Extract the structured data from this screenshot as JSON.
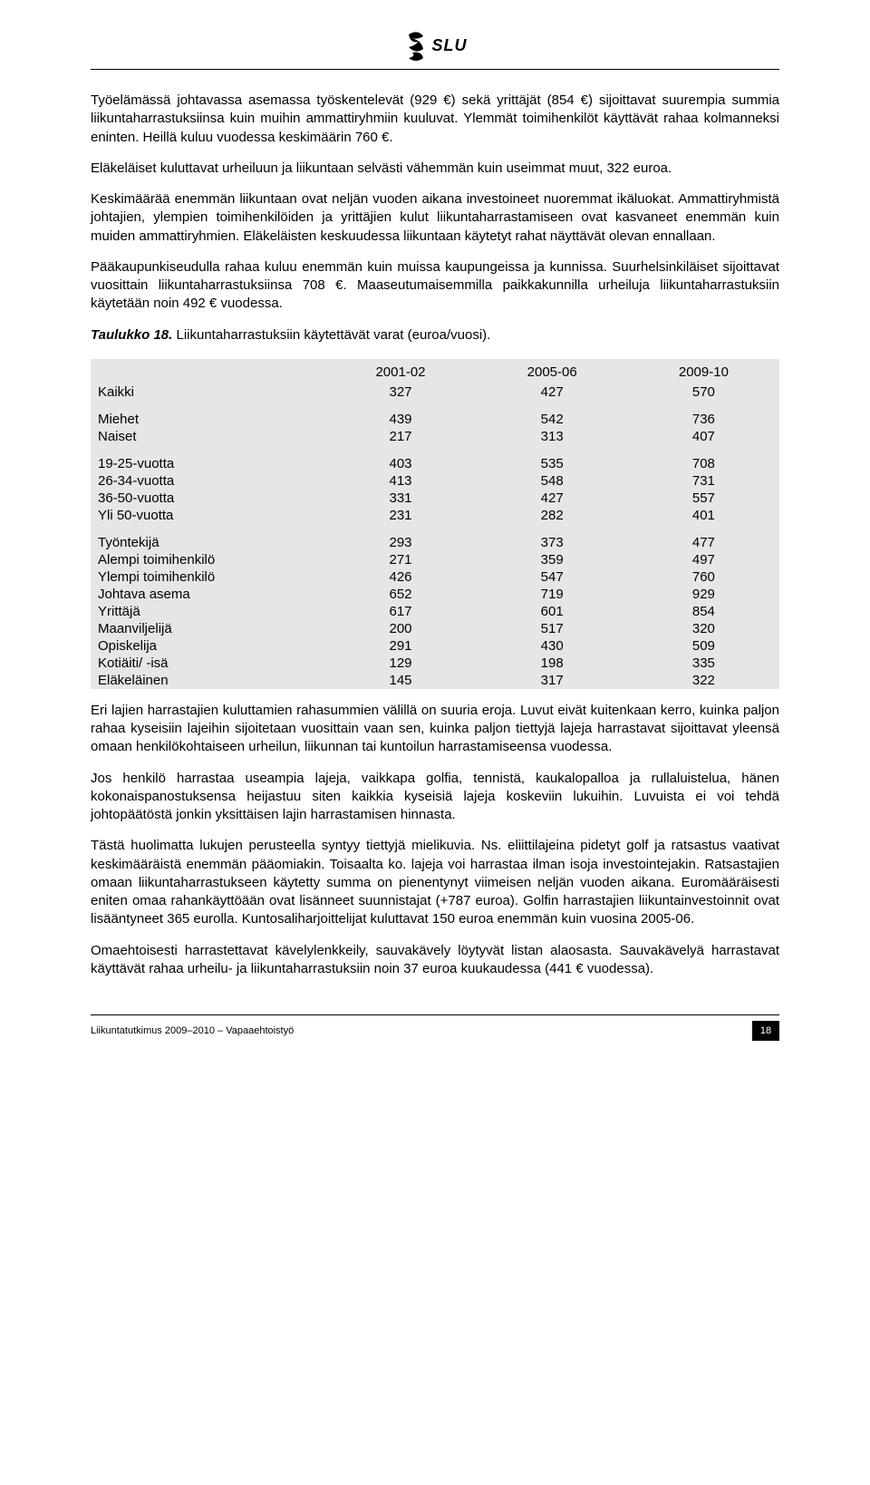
{
  "header": {
    "brand": "SLU"
  },
  "paragraphs": {
    "p1": "Työelämässä johtavassa asemassa työskentelevät (929 €) sekä yrittäjät (854 €) sijoittavat suurempia summia liikuntaharrastuksiinsa kuin muihin ammattiryhmiin kuuluvat. Ylemmät toimihenkilöt käyttävät rahaa kolmanneksi eninten. Heillä kuluu vuodessa keskimäärin 760 €.",
    "p2": "Eläkeläiset kuluttavat urheiluun ja liikuntaan selvästi vähemmän kuin useimmat muut, 322 euroa.",
    "p3": "Keskimäärää enemmän liikuntaan ovat neljän vuoden aikana investoineet nuoremmat ikäluokat. Ammattiryhmistä johtajien, ylempien toimihenkilöiden ja yrittäjien kulut liikuntaharrastamiseen ovat kasvaneet enemmän kuin muiden ammattiryhmien. Eläkeläisten keskuudessa liikuntaan käytetyt rahat näyttävät olevan ennallaan.",
    "p4": "Pääkaupunkiseudulla rahaa kuluu enemmän kuin muissa kaupungeissa ja kunnissa. Suurhelsinkiläiset sijoittavat vuosittain liikuntaharrastuksiinsa 708 €. Maaseutumaisemmilla paikkakunnilla urheiluja liikuntaharrastuksiin käytetään noin 492 € vuodessa.",
    "p5": "Eri lajien harrastajien kuluttamien rahasummien välillä on suuria eroja. Luvut eivät kuitenkaan kerro, kuinka paljon rahaa kyseisiin lajeihin sijoitetaan vuosittain vaan sen, kuinka paljon tiettyjä lajeja harrastavat sijoittavat yleensä omaan henkilökohtaiseen urheilun, liikunnan tai kuntoilun harrastamiseensa vuodessa.",
    "p6": "Jos henkilö harrastaa useampia lajeja, vaikkapa golfia, tennistä, kaukalopalloa ja rullaluistelua, hänen kokonaispanostuksensa heijastuu siten kaikkia kyseisiä lajeja koskeviin lukuihin. Luvuista ei voi tehdä johtopäätöstä jonkin yksittäisen lajin harrastamisen hinnasta.",
    "p7": "Tästä huolimatta lukujen perusteella syntyy tiettyjä mielikuvia. Ns. eliittilajeina pidetyt golf ja ratsastus vaativat keskimääräistä enemmän pääomiakin. Toisaalta ko. lajeja voi harrastaa ilman isoja investointejakin. Ratsastajien omaan liikuntaharrastukseen käytetty summa on pienentynyt viimeisen neljän vuoden aikana. Euromääräisesti eniten omaa rahankäyttöään ovat lisänneet suunnistajat (+787 euroa). Golfin harrastajien liikuntainvestoinnit ovat lisääntyneet 365 eurolla. Kuntosaliharjoittelijat kuluttavat 150 euroa enemmän kuin vuosina 2005-06.",
    "p8": "Omaehtoisesti harrastettavat kävelylenkkeily, sauvakävely löytyvät listan alaosasta. Sauvakävelyä harrastavat käyttävät rahaa urheilu- ja liikuntaharrastuksiin noin 37 euroa kuukaudessa (441 € vuodessa)."
  },
  "table": {
    "title_bold": "Taulukko 18.",
    "title_rest": " Liikuntaharrastuksiin käytettävät varat (euroa/vuosi).",
    "headers": [
      "",
      "2001-02",
      "2005-06",
      "2009-10"
    ],
    "groups": [
      {
        "rows": [
          {
            "label": "Kaikki",
            "v": [
              "327",
              "427",
              "570"
            ]
          }
        ]
      },
      {
        "rows": [
          {
            "label": "Miehet",
            "v": [
              "439",
              "542",
              "736"
            ]
          },
          {
            "label": "Naiset",
            "v": [
              "217",
              "313",
              "407"
            ]
          }
        ]
      },
      {
        "rows": [
          {
            "label": "19-25-vuotta",
            "v": [
              "403",
              "535",
              "708"
            ]
          },
          {
            "label": "26-34-vuotta",
            "v": [
              "413",
              "548",
              "731"
            ]
          },
          {
            "label": "36-50-vuotta",
            "v": [
              "331",
              "427",
              "557"
            ]
          },
          {
            "label": "Yli 50-vuotta",
            "v": [
              "231",
              "282",
              "401"
            ]
          }
        ]
      },
      {
        "rows": [
          {
            "label": "Työntekijä",
            "v": [
              "293",
              "373",
              "477"
            ]
          },
          {
            "label": "Alempi toimihenkilö",
            "v": [
              "271",
              "359",
              "497"
            ]
          },
          {
            "label": "Ylempi toimihenkilö",
            "v": [
              "426",
              "547",
              "760"
            ]
          },
          {
            "label": "Johtava asema",
            "v": [
              "652",
              "719",
              "929"
            ]
          },
          {
            "label": "Yrittäjä",
            "v": [
              "617",
              "601",
              "854"
            ]
          },
          {
            "label": "Maanviljelijä",
            "v": [
              "200",
              "517",
              "320"
            ]
          },
          {
            "label": "Opiskelija",
            "v": [
              "291",
              "430",
              "509"
            ]
          },
          {
            "label": "Kotiäiti/ -isä",
            "v": [
              "129",
              "198",
              "335"
            ]
          },
          {
            "label": "Eläkeläinen",
            "v": [
              "145",
              "317",
              "322"
            ]
          }
        ]
      }
    ]
  },
  "footer": {
    "text": "Liikuntatutkimus 2009–2010 – Vapaaehtoistyö",
    "page": "18"
  },
  "colors": {
    "table_bg": "#e6e6e6",
    "text": "#000000",
    "page_bg": "#ffffff"
  }
}
